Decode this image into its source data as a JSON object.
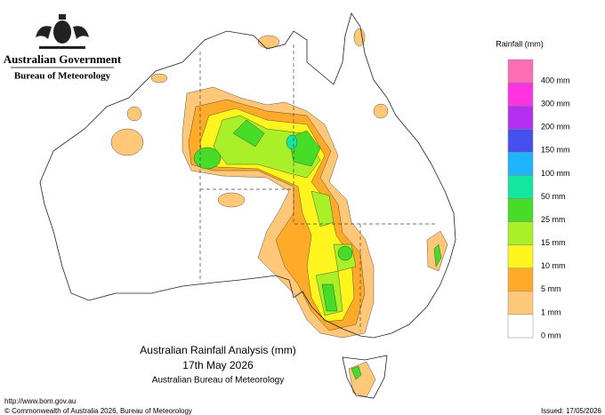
{
  "header": {
    "government": "Australian Government",
    "agency": "Bureau of Meteorology"
  },
  "legend": {
    "title": "Rainfall (mm)",
    "colors": [
      "#ff6eb4",
      "#ff33e0",
      "#b42ff0",
      "#4650f0",
      "#1eb4ff",
      "#14e6a0",
      "#46dc28",
      "#aaf028",
      "#fff51e",
      "#ffaa28",
      "#ffc878",
      "#ffffff"
    ],
    "labels": [
      "400 mm",
      "300 mm",
      "200 mm",
      "150 mm",
      "100 mm",
      "50 mm",
      "25 mm",
      "15 mm",
      "10 mm",
      "5 mm",
      "1 mm",
      "0 mm"
    ]
  },
  "map": {
    "title": "Australian Rainfall Analysis (mm)",
    "date": "17th May 2026",
    "source": "Australian Bureau of Meteorology"
  },
  "footer": {
    "url": "http://www.bom.gov.au",
    "copyright": "© Commonwealth of Australia 2026, Bureau of Meteorology",
    "issued": "Issued: 17/05/2026"
  }
}
